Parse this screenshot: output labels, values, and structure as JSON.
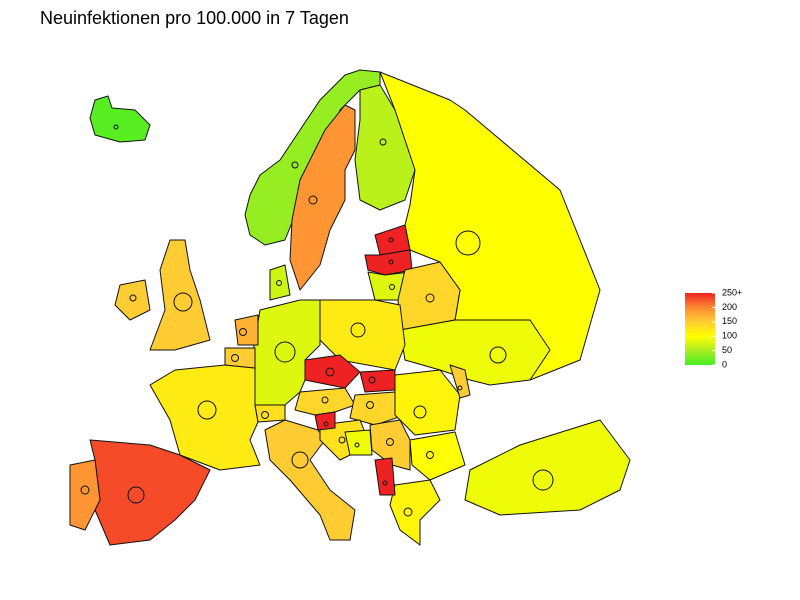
{
  "chart_data": {
    "type": "choropleth",
    "title": "Neuinfektionen pro 100.000 in 7 Tagen",
    "values": [
      10,
      40,
      190,
      60,
      100,
      280,
      280,
      80,
      140,
      90,
      120,
      80,
      70,
      150,
      150,
      120,
      230,
      190,
      150,
      300,
      250,
      140,
      140,
      110,
      150,
      100,
      110,
      90,
      150,
      130,
      300,
      130,
      170,
      150,
      280,
      90
    ],
    "ylim": [
      0,
      250
    ],
    "yticks": [
      0,
      50,
      100,
      150,
      200,
      {
        "value": 250,
        "label": "250+"
      }
    ],
    "colors": [
      "#44ee22",
      "#aaee22",
      "#ffff00",
      "#ffcc33",
      "#ff8833",
      "#ee2222"
    ]
  }
}
